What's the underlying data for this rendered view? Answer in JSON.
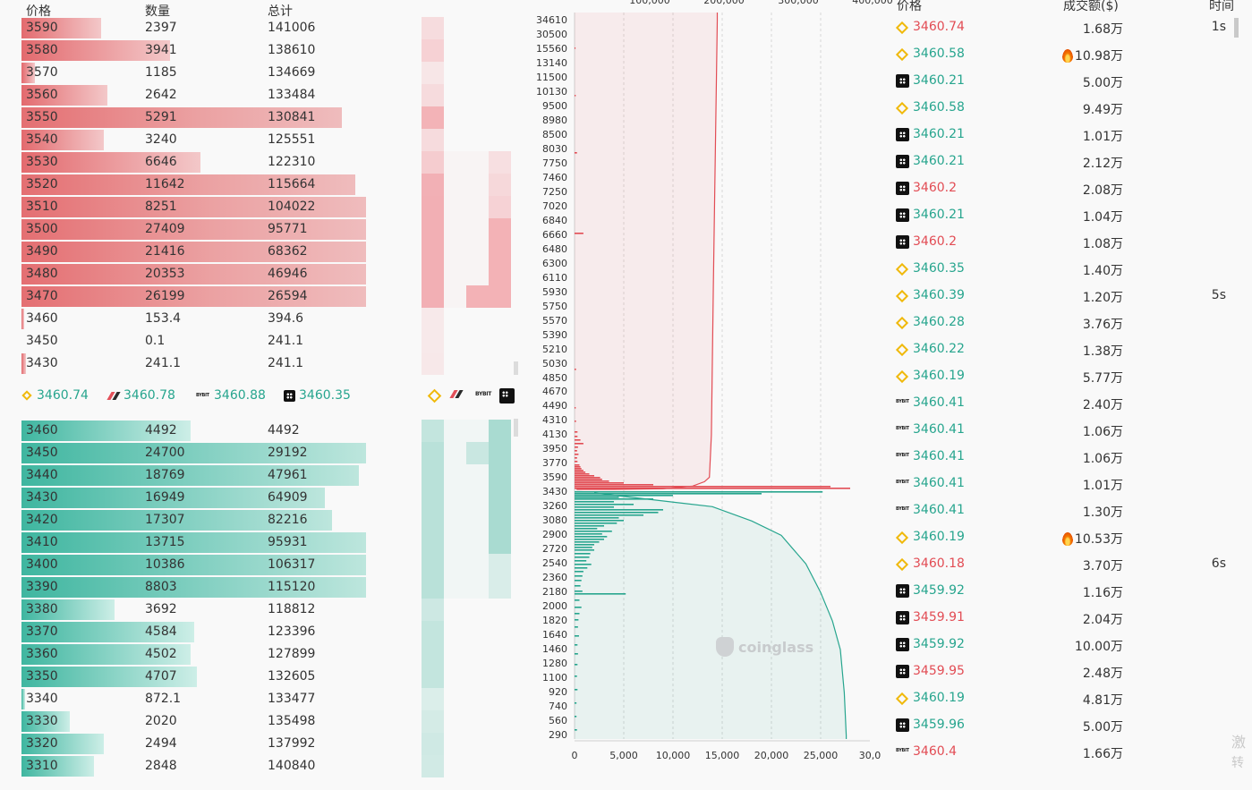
{
  "orderbook": {
    "headers": {
      "price": "价格",
      "qty": "数量",
      "total": "总计"
    },
    "asks": [
      {
        "price": "3590",
        "qty": "2397",
        "total": "141006",
        "fill": 0.23
      },
      {
        "price": "3580",
        "qty": "3941",
        "total": "138610",
        "fill": 0.43
      },
      {
        "price": "3570",
        "qty": "1185",
        "total": "134669",
        "fill": 0.04
      },
      {
        "price": "3560",
        "qty": "2642",
        "total": "133484",
        "fill": 0.25
      },
      {
        "price": "3550",
        "qty": "5291",
        "total": "130841",
        "fill": 0.93
      },
      {
        "price": "3540",
        "qty": "3240",
        "total": "125551",
        "fill": 0.24
      },
      {
        "price": "3530",
        "qty": "6646",
        "total": "122310",
        "fill": 0.52
      },
      {
        "price": "3520",
        "qty": "11642",
        "total": "115664",
        "fill": 0.97
      },
      {
        "price": "3510",
        "qty": "8251",
        "total": "104022",
        "fill": 1.0
      },
      {
        "price": "3500",
        "qty": "27409",
        "total": "95771",
        "fill": 1.0
      },
      {
        "price": "3490",
        "qty": "21416",
        "total": "68362",
        "fill": 1.0
      },
      {
        "price": "3480",
        "qty": "20353",
        "total": "46946",
        "fill": 1.0
      },
      {
        "price": "3470",
        "qty": "26199",
        "total": "26594",
        "fill": 1.0
      },
      {
        "price": "3460",
        "qty": "153.4",
        "total": "394.6",
        "fill": 0.008
      },
      {
        "price": "3450",
        "qty": "0.1",
        "total": "241.1",
        "fill": 0.0
      },
      {
        "price": "3430",
        "qty": "241.1",
        "total": "241.1",
        "fill": 0.012
      }
    ],
    "mid": [
      {
        "exchange": "binance-icon",
        "price": "3460.74"
      },
      {
        "exchange": "bitget-icon",
        "price": "3460.78"
      },
      {
        "exchange": "bybit-icon",
        "label": "BYBIT",
        "price": "3460.88"
      },
      {
        "exchange": "okx-icon",
        "price": "3460.35"
      }
    ],
    "bids": [
      {
        "price": "3460",
        "qty": "4492",
        "total": "4492",
        "fill": 0.49
      },
      {
        "price": "3450",
        "qty": "24700",
        "total": "29192",
        "fill": 1.0
      },
      {
        "price": "3440",
        "qty": "18769",
        "total": "47961",
        "fill": 0.98
      },
      {
        "price": "3430",
        "qty": "16949",
        "total": "64909",
        "fill": 0.88
      },
      {
        "price": "3420",
        "qty": "17307",
        "total": "82216",
        "fill": 0.9
      },
      {
        "price": "3410",
        "qty": "13715",
        "total": "95931",
        "fill": 1.0
      },
      {
        "price": "3400",
        "qty": "10386",
        "total": "106317",
        "fill": 1.0
      },
      {
        "price": "3390",
        "qty": "8803",
        "total": "115120",
        "fill": 1.0
      },
      {
        "price": "3380",
        "qty": "3692",
        "total": "118812",
        "fill": 0.27
      },
      {
        "price": "3370",
        "qty": "4584",
        "total": "123396",
        "fill": 0.5
      },
      {
        "price": "3360",
        "qty": "4502",
        "total": "127899",
        "fill": 0.49
      },
      {
        "price": "3350",
        "qty": "4707",
        "total": "132605",
        "fill": 0.51
      },
      {
        "price": "3340",
        "qty": "872.1",
        "total": "133477",
        "fill": 0.01
      },
      {
        "price": "3330",
        "qty": "2020",
        "total": "135498",
        "fill": 0.14
      },
      {
        "price": "3320",
        "qty": "2494",
        "total": "137992",
        "fill": 0.24
      },
      {
        "price": "3310",
        "qty": "2848",
        "total": "140840",
        "fill": 0.21
      }
    ]
  },
  "chart_data": {
    "type": "area",
    "description_axes": "vertical price axis, horizontal quantity axis",
    "price_ticks": [
      "34610",
      "30500",
      "15560",
      "13140",
      "11500",
      "10130",
      "9500",
      "8980",
      "8500",
      "8030",
      "7750",
      "7460",
      "7250",
      "7020",
      "6840",
      "6660",
      "6480",
      "6300",
      "6110",
      "5930",
      "5750",
      "5570",
      "5390",
      "5210",
      "5030",
      "4850",
      "4670",
      "4490",
      "4310",
      "4130",
      "3950",
      "3770",
      "3590",
      "3430",
      "3260",
      "3080",
      "2900",
      "2720",
      "2540",
      "2360",
      "2180",
      "2000",
      "1820",
      "1640",
      "1460",
      "1280",
      "1100",
      "920",
      "740",
      "560",
      "290"
    ],
    "qty_ticks": [
      "0",
      "5,000",
      "10,000",
      "15,000",
      "20,000",
      "25,000",
      "30,0"
    ],
    "top_ticks": [
      "100,000",
      "200,000",
      "300,000",
      "400,000"
    ],
    "xlim": [
      0,
      30000
    ],
    "series": [
      {
        "side": "ask",
        "color": "#e24c54",
        "cumulative": [
          [
            3430,
            200
          ],
          [
            3450,
            4000
          ],
          [
            3470,
            9000
          ],
          [
            3500,
            12000
          ],
          [
            3550,
            13200
          ],
          [
            3600,
            13700
          ],
          [
            4130,
            13900
          ],
          [
            6000,
            14100
          ],
          [
            34610,
            14500
          ]
        ]
      },
      {
        "side": "bid",
        "color": "#27a58e",
        "cumulative": [
          [
            3430,
            2000
          ],
          [
            3260,
            14000
          ],
          [
            3080,
            18000
          ],
          [
            2900,
            21000
          ],
          [
            2540,
            23500
          ],
          [
            2180,
            25000
          ],
          [
            1820,
            26200
          ],
          [
            1460,
            27000
          ],
          [
            920,
            27400
          ],
          [
            290,
            27600
          ]
        ]
      }
    ],
    "watermark": "coinglass",
    "grid": true
  },
  "trades": {
    "headers": {
      "price": "价格",
      "amount": "成交额($)",
      "time": "时间"
    },
    "rows": [
      {
        "ex": "binance-icon",
        "price": "3460.74",
        "side": "red",
        "amount": "1.68万",
        "time": "1s"
      },
      {
        "ex": "binance-icon",
        "price": "3460.58",
        "side": "green",
        "amount": "10.98万",
        "hot": true,
        "time": ""
      },
      {
        "ex": "okx-icon",
        "price": "3460.21",
        "side": "green",
        "amount": "5.00万",
        "time": ""
      },
      {
        "ex": "binance-icon",
        "price": "3460.58",
        "side": "green",
        "amount": "9.49万",
        "time": ""
      },
      {
        "ex": "okx-icon",
        "price": "3460.21",
        "side": "green",
        "amount": "1.01万",
        "time": ""
      },
      {
        "ex": "okx-icon",
        "price": "3460.21",
        "side": "green",
        "amount": "2.12万",
        "time": ""
      },
      {
        "ex": "okx-icon",
        "price": "3460.2",
        "side": "red",
        "amount": "2.08万",
        "time": ""
      },
      {
        "ex": "okx-icon",
        "price": "3460.21",
        "side": "green",
        "amount": "1.04万",
        "time": ""
      },
      {
        "ex": "okx-icon",
        "price": "3460.2",
        "side": "red",
        "amount": "1.08万",
        "time": ""
      },
      {
        "ex": "binance-icon",
        "price": "3460.35",
        "side": "green",
        "amount": "1.40万",
        "time": ""
      },
      {
        "ex": "binance-icon",
        "price": "3460.39",
        "side": "green",
        "amount": "1.20万",
        "time": "5s"
      },
      {
        "ex": "binance-icon",
        "price": "3460.28",
        "side": "green",
        "amount": "3.76万",
        "time": ""
      },
      {
        "ex": "binance-icon",
        "price": "3460.22",
        "side": "green",
        "amount": "1.38万",
        "time": ""
      },
      {
        "ex": "binance-icon",
        "price": "3460.19",
        "side": "green",
        "amount": "5.77万",
        "time": ""
      },
      {
        "ex": "bybit-icon",
        "price": "3460.41",
        "side": "green",
        "amount": "2.40万",
        "time": ""
      },
      {
        "ex": "bybit-icon",
        "price": "3460.41",
        "side": "green",
        "amount": "1.06万",
        "time": ""
      },
      {
        "ex": "bybit-icon",
        "price": "3460.41",
        "side": "green",
        "amount": "1.06万",
        "time": ""
      },
      {
        "ex": "bybit-icon",
        "price": "3460.41",
        "side": "green",
        "amount": "1.01万",
        "time": ""
      },
      {
        "ex": "bybit-icon",
        "price": "3460.41",
        "side": "green",
        "amount": "1.30万",
        "time": ""
      },
      {
        "ex": "binance-icon",
        "price": "3460.19",
        "side": "green",
        "amount": "10.53万",
        "hot": true,
        "time": ""
      },
      {
        "ex": "binance-icon",
        "price": "3460.18",
        "side": "red",
        "amount": "3.70万",
        "time": "6s"
      },
      {
        "ex": "okx-icon",
        "price": "3459.92",
        "side": "green",
        "amount": "1.16万",
        "time": ""
      },
      {
        "ex": "okx-icon",
        "price": "3459.91",
        "side": "red",
        "amount": "2.04万",
        "time": ""
      },
      {
        "ex": "okx-icon",
        "price": "3459.92",
        "side": "green",
        "amount": "10.00万",
        "time": ""
      },
      {
        "ex": "okx-icon",
        "price": "3459.95",
        "side": "red",
        "amount": "2.48万",
        "time": ""
      },
      {
        "ex": "binance-icon",
        "price": "3460.19",
        "side": "green",
        "amount": "4.81万",
        "time": ""
      },
      {
        "ex": "okx-icon",
        "price": "3459.96",
        "side": "green",
        "amount": "5.00万",
        "time": ""
      },
      {
        "ex": "bybit-icon",
        "price": "3460.4",
        "side": "red",
        "amount": "1.66万",
        "time": ""
      }
    ],
    "side_notes": [
      "激",
      "转"
    ]
  },
  "colors": {
    "ask": "#e24c54",
    "bid": "#27a58e",
    "binance": "#f0b90b"
  }
}
